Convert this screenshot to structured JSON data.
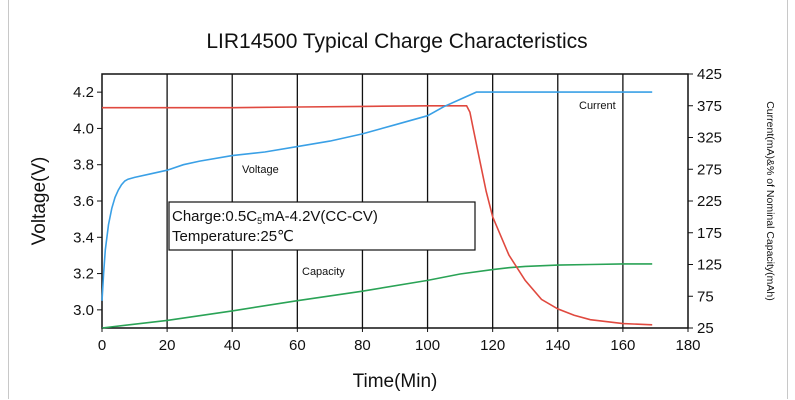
{
  "chart_data": {
    "type": "line",
    "title": "LIR14500 Typical Charge Characteristics",
    "xlabel": "Time(Min)",
    "ylabel": "Voltage(V)",
    "y2label": "Current(mA)&% of Nominal Capacity(mAh)",
    "xlim": [
      0,
      180
    ],
    "ylim": [
      2.9,
      4.3
    ],
    "y2lim": [
      25,
      425
    ],
    "x_ticks": [
      "0",
      "20",
      "40",
      "60",
      "80",
      "100",
      "120",
      "140",
      "160",
      "180"
    ],
    "y_ticks": [
      "3.0",
      "3.2",
      "3.4",
      "3.6",
      "3.8",
      "4.0",
      "4.2"
    ],
    "y2_ticks": [
      "25",
      "75",
      "125",
      "175",
      "225",
      "275",
      "325",
      "375",
      "425"
    ],
    "grid": "vertical lines at each 20 min",
    "colors": {
      "voltage": "#3aa0e6",
      "current": "#e0493f",
      "capacity": "#2aa356"
    },
    "annotation": {
      "line1": "Charge:0.5C",
      "sub": "5",
      "line1b": "mA-4.2V(CC-CV)",
      "line2": "Temperature:25℃"
    },
    "series": [
      {
        "name": "Voltage",
        "axis": "left",
        "x": [
          0,
          0.5,
          1,
          2,
          3,
          4,
          5,
          6,
          7,
          8,
          10,
          15,
          20,
          25,
          30,
          40,
          50,
          60,
          70,
          80,
          90,
          100,
          105,
          110,
          115,
          120,
          130,
          140,
          150,
          160,
          169
        ],
        "y": [
          3.05,
          3.2,
          3.33,
          3.47,
          3.56,
          3.62,
          3.66,
          3.69,
          3.71,
          3.72,
          3.73,
          3.75,
          3.77,
          3.8,
          3.82,
          3.85,
          3.87,
          3.9,
          3.93,
          3.97,
          4.02,
          4.07,
          4.12,
          4.16,
          4.2,
          4.2,
          4.2,
          4.2,
          4.2,
          4.2,
          4.2
        ]
      },
      {
        "name": "Current",
        "axis": "right",
        "x": [
          0,
          20,
          40,
          60,
          80,
          100,
          110,
          112,
          113,
          114,
          116,
          118,
          120,
          125,
          130,
          135,
          140,
          145,
          150,
          160,
          169
        ],
        "y": [
          372,
          372,
          372,
          373,
          374,
          375,
          375,
          375,
          365,
          340,
          290,
          240,
          200,
          140,
          100,
          70,
          55,
          45,
          38,
          32,
          30
        ]
      },
      {
        "name": "Capacity",
        "axis": "right",
        "x": [
          0,
          20,
          40,
          60,
          80,
          100,
          110,
          120,
          125,
          130,
          140,
          150,
          160,
          169
        ],
        "y": [
          25,
          37,
          52,
          68,
          83,
          100,
          110,
          117,
          120,
          122,
          124,
          125,
          126,
          126
        ]
      }
    ]
  }
}
